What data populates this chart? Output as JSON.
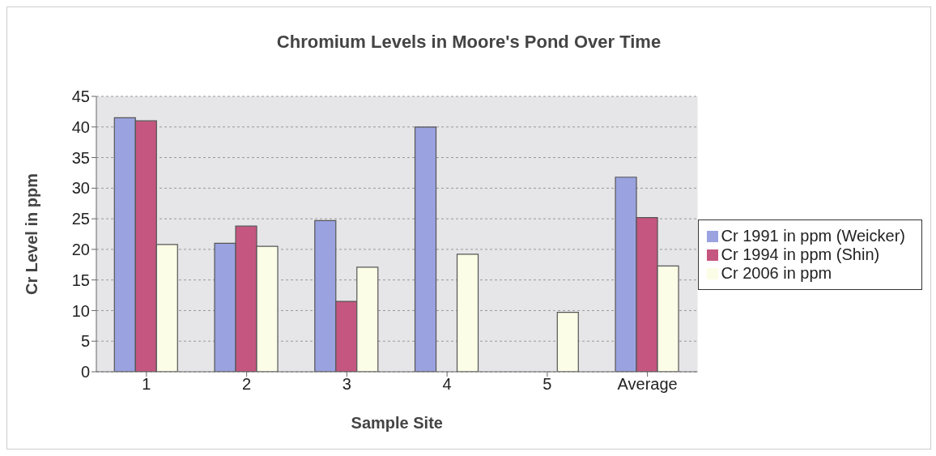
{
  "chart_data": {
    "type": "bar",
    "title": "Chromium Levels in Moore's Pond Over Time",
    "xlabel": "Sample Site",
    "ylabel": "Cr Level in ppm",
    "categories": [
      "1",
      "2",
      "3",
      "4",
      "5",
      "Average"
    ],
    "series": [
      {
        "name": "Cr 1991 in ppm (Weicker)",
        "color": "#9aa3e0",
        "values": [
          41.5,
          21,
          24.7,
          40,
          0,
          31.8
        ]
      },
      {
        "name": "Cr 1994 in ppm (Shin)",
        "color": "#c4567f",
        "values": [
          41,
          23.8,
          11.5,
          null,
          0,
          25.2
        ]
      },
      {
        "name": "Cr 2006 in ppm",
        "color": "#fbfde6",
        "values": [
          20.8,
          20.5,
          17.1,
          19.2,
          9.7,
          17.3
        ]
      }
    ],
    "ylim": [
      0,
      45
    ],
    "yticks": [
      0,
      5,
      10,
      15,
      20,
      25,
      30,
      35,
      40,
      45
    ],
    "grid": "y",
    "legend": "right"
  }
}
